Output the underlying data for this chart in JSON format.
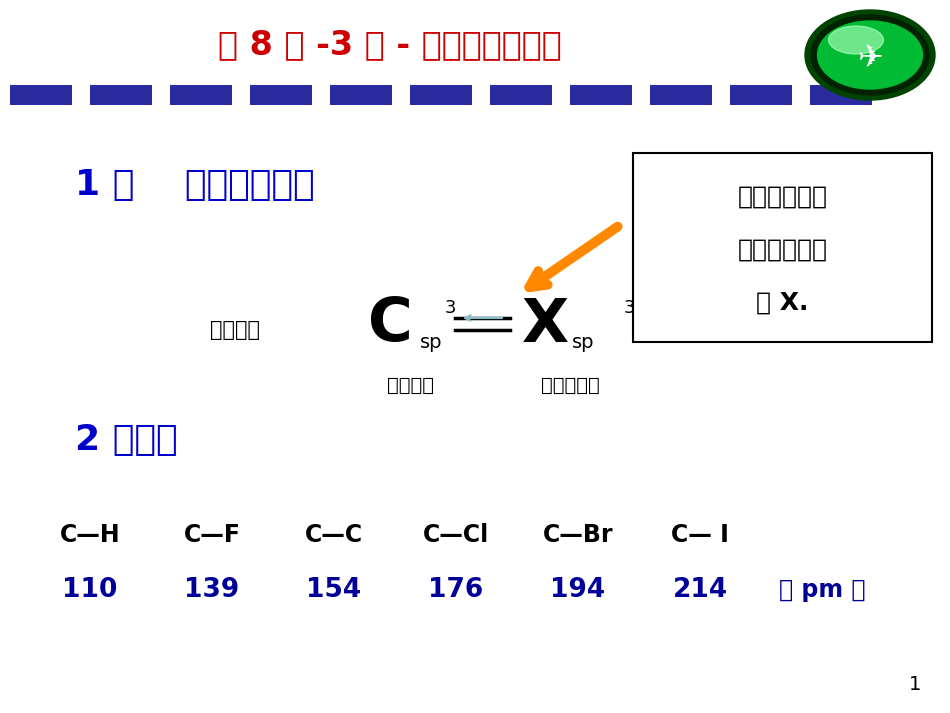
{
  "title": "第 8 章 -3 节 - 卤代烃化学性质",
  "title_color": "#CC0000",
  "title_fontsize": 24,
  "bg_color": "#FFFFFF",
  "dash_color": "#2B2BA0",
  "section1_text": "1 、    碳卤键的特点",
  "section1_color": "#0000CC",
  "section1_fontsize": 26,
  "chengjian_text": "成键轨道",
  "box_text_line1": "极性共价键，",
  "box_text_line2": "成键电子对偏",
  "box_text_line3": "向 X.",
  "section2_text": "2 、键长",
  "section2_color": "#0000CC",
  "section2_fontsize": 26,
  "bonds": [
    "C—H",
    "C—F",
    "C—C",
    "C—Cl",
    "C—Br",
    "C— I"
  ],
  "values": [
    "110",
    "139",
    "154",
    "176",
    "194",
    "214"
  ],
  "unit": "（ pm ）",
  "page_num": "1",
  "dengxing": "等性杂化",
  "budengxing": "不等性杂化"
}
